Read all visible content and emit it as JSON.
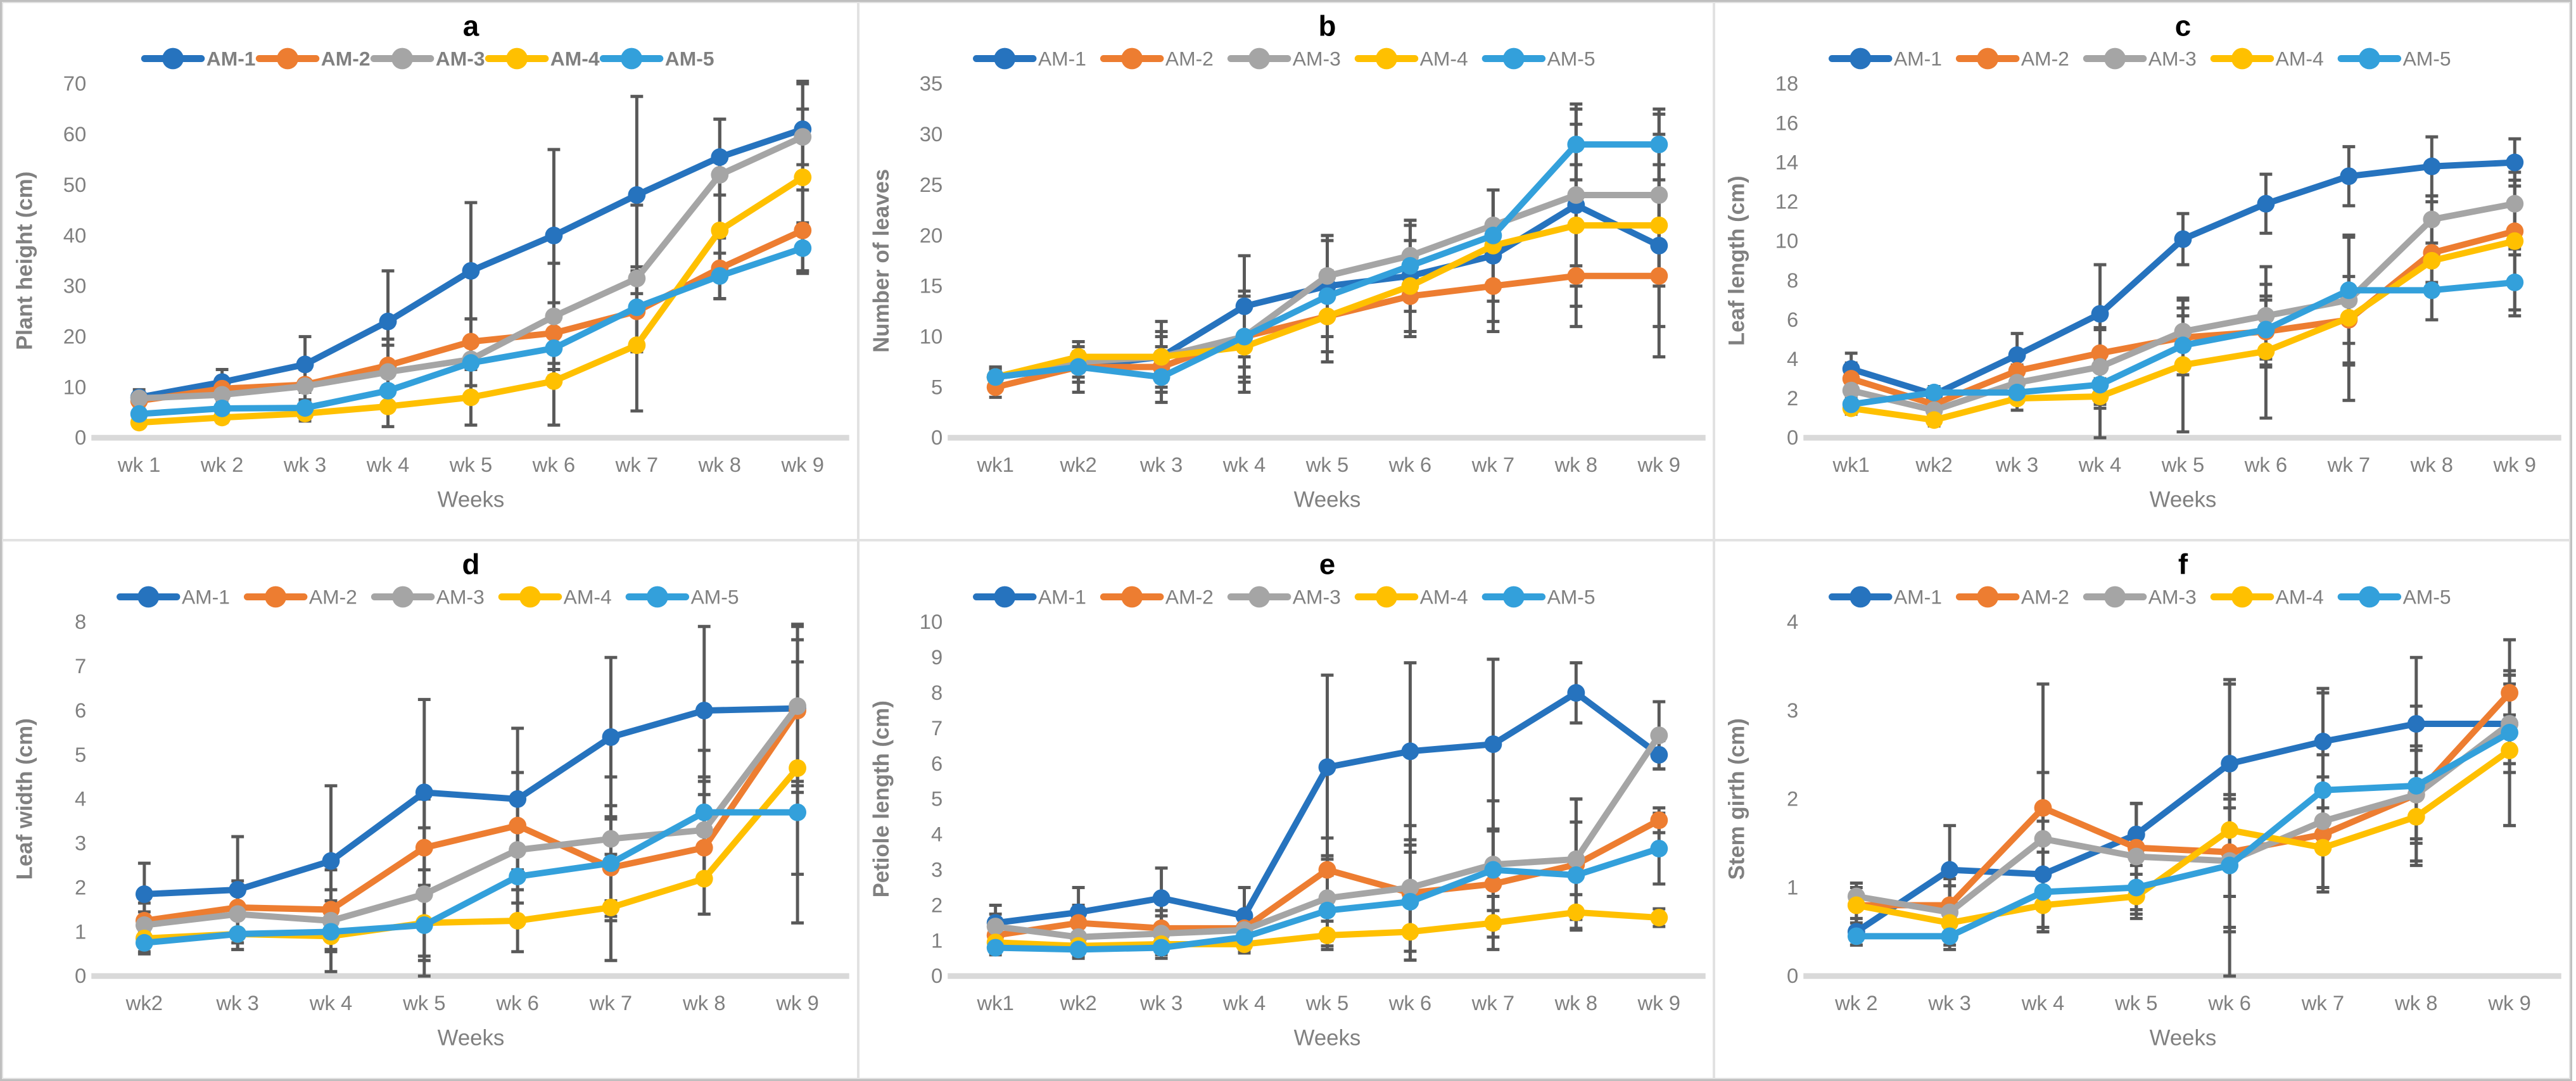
{
  "colors": {
    "series": {
      "AM-1": "#2673be",
      "AM-2": "#ed7d31",
      "AM-3": "#a5a5a5",
      "AM-4": "#ffc000",
      "AM-5": "#33a0db"
    },
    "error_bar": "#595959",
    "axis_text": "#808080",
    "title_text": "#000000",
    "baseline": "#d9d9d9"
  },
  "legend_entries": [
    "AM-1",
    "AM-2",
    "AM-3",
    "AM-4",
    "AM-5"
  ],
  "chart_data": [
    {
      "id": "a",
      "type": "line",
      "title": "a",
      "xlabel": "Weeks",
      "ylabel": "Plant height (cm)",
      "ylim": [
        0,
        70
      ],
      "ytick_step": 10,
      "grid": false,
      "legend_position": "top",
      "legend_bold": true,
      "categories": [
        "wk 1",
        "wk 2",
        "wk 3",
        "wk 4",
        "wk 5",
        "wk 6",
        "wk 7",
        "wk 8",
        "wk 9"
      ],
      "series": [
        {
          "name": "AM-1",
          "values": [
            8,
            11,
            14.5,
            23,
            33,
            40,
            48,
            55.5,
            61
          ],
          "err": [
            1.5,
            2.5,
            5.5,
            10,
            13.5,
            17,
            19.5,
            7.5,
            9.5
          ]
        },
        {
          "name": "AM-2",
          "values": [
            7.3,
            9.7,
            10.5,
            14.3,
            19,
            20.7,
            25,
            33.5,
            41
          ],
          "err": [
            1,
            1.5,
            3,
            4,
            4.5,
            6,
            8,
            6,
            8
          ]
        },
        {
          "name": "AM-3",
          "values": [
            7.8,
            8.5,
            10.2,
            13,
            15.5,
            24,
            31.5,
            52,
            59.5
          ],
          "err": [
            1,
            1.8,
            4,
            6.5,
            8,
            10.5,
            14.5,
            11,
            5.5
          ]
        },
        {
          "name": "AM-4",
          "values": [
            3,
            4,
            4.8,
            6.2,
            8,
            11.2,
            18.3,
            41,
            51.5
          ],
          "err": [
            0.5,
            1,
            1.5,
            4,
            5.5,
            8.7,
            13,
            13.5,
            18.5
          ]
        },
        {
          "name": "AM-5",
          "values": [
            4.7,
            5.8,
            5.9,
            9.3,
            14.8,
            17.7,
            25.8,
            32,
            37.5
          ],
          "err": [
            0.8,
            1.2,
            1.5,
            3,
            4.5,
            5.5,
            8,
            4.5,
            5
          ]
        }
      ]
    },
    {
      "id": "b",
      "type": "line",
      "title": "b",
      "xlabel": "Weeks",
      "ylabel": "Number of leaves",
      "ylim": [
        0,
        35
      ],
      "ytick_step": 5,
      "grid": false,
      "legend_position": "top",
      "legend_bold": false,
      "categories": [
        "wk1",
        "wk2",
        "wk 3",
        "wk 4",
        "wk 5",
        "wk 6",
        "wk 7",
        "wk 8",
        "wk 9"
      ],
      "series": [
        {
          "name": "AM-1",
          "values": [
            6,
            7,
            8,
            13,
            15,
            16,
            18,
            23,
            19
          ],
          "err": [
            1,
            2.5,
            3.5,
            5,
            5,
            5.5,
            6.5,
            10,
            11
          ]
        },
        {
          "name": "AM-2",
          "values": [
            5,
            7,
            7,
            10,
            12,
            14,
            15,
            16,
            16
          ],
          "err": [
            1,
            1.5,
            2,
            3,
            3.5,
            4,
            4.5,
            5,
            5
          ]
        },
        {
          "name": "AM-3",
          "values": [
            6,
            7.5,
            8,
            10,
            16,
            18,
            21,
            24,
            24
          ],
          "err": [
            0.8,
            1.5,
            2.5,
            4,
            4,
            3,
            3.5,
            7,
            8
          ]
        },
        {
          "name": "AM-4",
          "values": [
            6,
            8,
            8,
            9,
            12,
            15,
            19,
            21,
            21
          ],
          "err": [
            0.8,
            1.5,
            2,
            4.5,
            4.5,
            4.5,
            5.5,
            6,
            6
          ]
        },
        {
          "name": "AM-5",
          "values": [
            6,
            7,
            6,
            10,
            14,
            17,
            20,
            29,
            29
          ],
          "err": [
            1,
            1.5,
            2.5,
            4.5,
            5.5,
            4.5,
            4.5,
            3.5,
            3.5
          ]
        }
      ]
    },
    {
      "id": "c",
      "type": "line",
      "title": "c",
      "xlabel": "Weeks",
      "ylabel": "Leaf length (cm)",
      "ylim": [
        0,
        18
      ],
      "ytick_step": 2,
      "grid": false,
      "legend_position": "top",
      "legend_bold": false,
      "categories": [
        "wk1",
        "wk2",
        "wk 3",
        "wk 4",
        "wk 5",
        "wk 6",
        "wk 7",
        "wk 8",
        "wk 9"
      ],
      "series": [
        {
          "name": "AM-1",
          "values": [
            3.5,
            2.2,
            4.2,
            6.3,
            10.1,
            11.9,
            13.3,
            13.8,
            14
          ],
          "err": [
            0.8,
            0.4,
            1.1,
            2.5,
            1.3,
            1.5,
            1.5,
            1.5,
            1.2
          ]
        },
        {
          "name": "AM-2",
          "values": [
            3,
            1.7,
            3.4,
            4.3,
            5.1,
            5.4,
            6,
            9.4,
            10.5
          ],
          "err": [
            0.8,
            0.4,
            0.8,
            1.3,
            1.5,
            1.8,
            2.2,
            1.5,
            1.2
          ]
        },
        {
          "name": "AM-3",
          "values": [
            2.4,
            1.4,
            2.8,
            3.6,
            5.4,
            6.2,
            7,
            11.1,
            11.9
          ],
          "err": [
            0.6,
            0.4,
            0.9,
            1.9,
            1.6,
            2.5,
            3.3,
            1.2,
            1.2
          ]
        },
        {
          "name": "AM-4",
          "values": [
            1.5,
            0.9,
            2,
            2.1,
            3.7,
            4.4,
            6.1,
            9,
            10
          ],
          "err": [
            0.3,
            0.3,
            0.6,
            2.1,
            3.4,
            3.4,
            4.2,
            3,
            3.5
          ]
        },
        {
          "name": "AM-5",
          "values": [
            1.7,
            2.3,
            2.3,
            2.7,
            4.7,
            5.5,
            7.5,
            7.5,
            7.9
          ],
          "err": [
            0.4,
            0.3,
            0.5,
            1.2,
            1.5,
            1.5,
            2.7,
            1.5,
            1.7
          ]
        }
      ]
    },
    {
      "id": "d",
      "type": "line",
      "title": "d",
      "xlabel": "Weeks",
      "ylabel": "Leaf width (cm)",
      "ylim": [
        0,
        8
      ],
      "ytick_step": 1,
      "grid": false,
      "legend_position": "top",
      "legend_bold": false,
      "categories": [
        "wk2",
        "wk 3",
        "wk 4",
        "wk 5",
        "wk 6",
        "wk 7",
        "wk 8",
        "wk 9"
      ],
      "series": [
        {
          "name": "AM-1",
          "values": [
            1.85,
            1.95,
            2.6,
            4.15,
            4,
            5.4,
            6,
            6.05
          ],
          "err": [
            0.7,
            1.2,
            1.7,
            2.1,
            1.6,
            1.8,
            1.9,
            1.9
          ]
        },
        {
          "name": "AM-2",
          "values": [
            1.25,
            1.55,
            1.5,
            2.9,
            3.4,
            2.45,
            2.9,
            6
          ],
          "err": [
            0.4,
            0.6,
            0.9,
            1.1,
            1.2,
            1.1,
            1.5,
            1.6
          ]
        },
        {
          "name": "AM-3",
          "values": [
            1.15,
            1.4,
            1.25,
            1.85,
            2.85,
            3.1,
            3.3,
            6.1
          ],
          "err": [
            0.3,
            0.5,
            0.7,
            1.5,
            1.2,
            1.4,
            1.2,
            1.8
          ]
        },
        {
          "name": "AM-4",
          "values": [
            0.85,
            0.95,
            0.9,
            1.2,
            1.25,
            1.55,
            2.2,
            4.7
          ],
          "err": [
            0.3,
            0.35,
            0.8,
            1.2,
            0.7,
            1.2,
            0.8,
            2.4
          ]
        },
        {
          "name": "AM-5",
          "values": [
            0.75,
            0.95,
            1,
            1.15,
            2.25,
            2.55,
            3.7,
            3.7
          ],
          "err": [
            0.25,
            0.35,
            0.4,
            0.7,
            1.1,
            1.3,
            1.4,
            2.5
          ]
        }
      ]
    },
    {
      "id": "e",
      "type": "line",
      "title": "e",
      "xlabel": "Weeks",
      "ylabel": "Petiole length (cm)",
      "ylim": [
        0,
        10
      ],
      "ytick_step": 1,
      "grid": false,
      "legend_position": "top",
      "legend_bold": false,
      "categories": [
        "wk1",
        "wk2",
        "wk 3",
        "wk 4",
        "wk 5",
        "wk 6",
        "wk 7",
        "wk 8",
        "wk 9"
      ],
      "series": [
        {
          "name": "AM-1",
          "values": [
            1.5,
            1.8,
            2.2,
            1.7,
            5.9,
            6.35,
            6.55,
            8,
            6.25
          ],
          "err": [
            0.5,
            0.7,
            0.85,
            0.8,
            2.6,
            2.5,
            2.4,
            0.85,
            0.4
          ]
        },
        {
          "name": "AM-2",
          "values": [
            1.15,
            1.5,
            1.35,
            1.35,
            3,
            2.35,
            2.6,
            3.15,
            4.4
          ],
          "err": [
            0.3,
            0.5,
            0.5,
            0.4,
            0.9,
            1.9,
            1.5,
            1.85,
            0.35
          ]
        },
        {
          "name": "AM-3",
          "values": [
            1.4,
            1.1,
            1.2,
            1.3,
            2.2,
            2.5,
            3.15,
            3.3,
            6.8
          ],
          "err": [
            0.35,
            0.4,
            0.5,
            0.45,
            1.2,
            1.2,
            1.8,
            1.7,
            0.95
          ]
        },
        {
          "name": "AM-4",
          "values": [
            0.95,
            0.85,
            0.9,
            0.9,
            1.15,
            1.25,
            1.5,
            1.8,
            1.65
          ],
          "err": [
            0.25,
            0.3,
            0.3,
            0.25,
            0.4,
            0.8,
            0.75,
            0.5,
            0.25
          ]
        },
        {
          "name": "AM-5",
          "values": [
            0.8,
            0.75,
            0.8,
            1.1,
            1.85,
            2.1,
            3,
            2.85,
            3.6
          ],
          "err": [
            0.2,
            0.25,
            0.3,
            0.4,
            1,
            1.4,
            1.15,
            1.5,
            1
          ]
        }
      ]
    },
    {
      "id": "f",
      "type": "line",
      "title": "f",
      "xlabel": "Weeks",
      "ylabel": "Stem girth (cm)",
      "ylim": [
        0,
        4
      ],
      "ytick_step": 1,
      "grid": false,
      "legend_position": "top",
      "legend_bold": false,
      "categories": [
        "wk 2",
        "wk 3",
        "wk 4",
        "wk 5",
        "wk 6",
        "wk 7",
        "wk 8",
        "wk 9"
      ],
      "series": [
        {
          "name": "AM-1",
          "values": [
            0.5,
            1.2,
            1.15,
            1.6,
            2.4,
            2.65,
            2.85,
            2.85
          ],
          "err": [
            0.15,
            0.5,
            0.6,
            0.35,
            0.95,
            0.6,
            0.75,
            0.55
          ]
        },
        {
          "name": "AM-2",
          "values": [
            0.8,
            0.8,
            1.9,
            1.45,
            1.4,
            1.6,
            2.05,
            3.2
          ],
          "err": [
            0.25,
            0.3,
            1.4,
            0.5,
            0.5,
            0.65,
            0.55,
            0.25
          ]
        },
        {
          "name": "AM-3",
          "values": [
            0.9,
            0.72,
            1.55,
            1.35,
            1.3,
            1.75,
            2.05,
            2.85
          ],
          "err": [
            0.15,
            0.3,
            0.75,
            0.6,
            0.75,
            0.75,
            0.5,
            0.45
          ]
        },
        {
          "name": "AM-4",
          "values": [
            0.8,
            0.6,
            0.8,
            0.9,
            1.65,
            1.45,
            1.8,
            2.55
          ],
          "err": [
            0.2,
            0.25,
            0.3,
            0.25,
            1.65,
            0.45,
            0.5,
            0.85
          ]
        },
        {
          "name": "AM-5",
          "values": [
            0.45,
            0.45,
            0.95,
            1,
            1.25,
            2.1,
            2.15,
            2.75
          ],
          "err": [
            0.1,
            0.15,
            0.45,
            0.3,
            0.75,
            1.1,
            0.9,
            1.05
          ]
        }
      ]
    }
  ]
}
